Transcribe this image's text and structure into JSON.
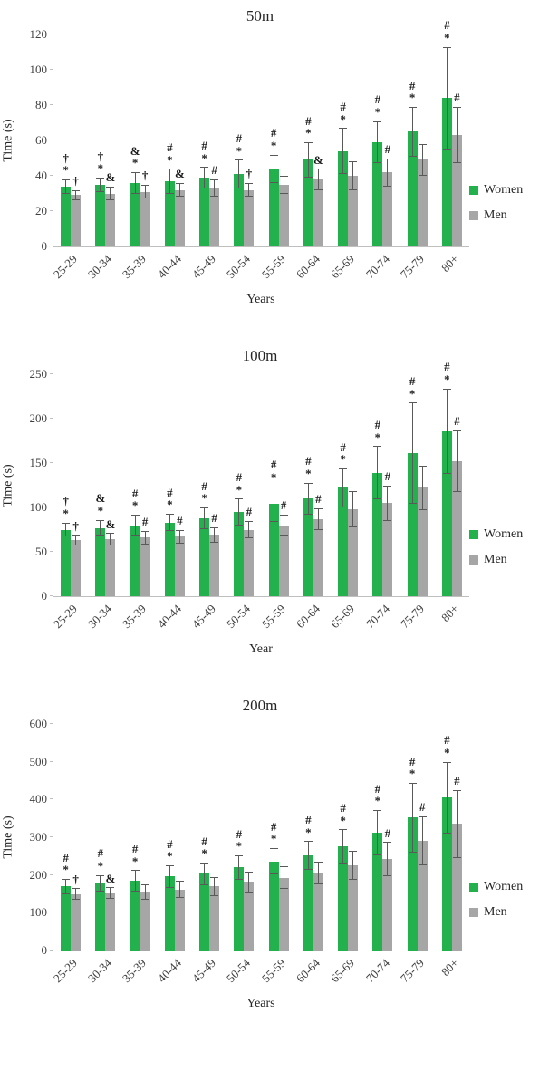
{
  "figure": {
    "background": "#ffffff"
  },
  "colors": {
    "women": "#22B14C",
    "men": "#A6A6A6",
    "error_bar": "#595959",
    "axis": "#BFBFBF",
    "annotation": "#1a1a1a",
    "tick_text": "#404040"
  },
  "legend": {
    "items": [
      "Women",
      "Men"
    ]
  },
  "chart_data": [
    {
      "type": "bar",
      "title": "50m",
      "xlabel": "Years",
      "ylabel": "Time (s)",
      "ylim": [
        0,
        120
      ],
      "yticks": [
        0,
        20,
        40,
        60,
        80,
        100,
        120
      ],
      "grid": false,
      "legend_position": "right",
      "categories": [
        "25-29",
        "30-34",
        "35-39",
        "40-44",
        "45-49",
        "50-54",
        "55-59",
        "60-64",
        "65-69",
        "70-74",
        "75-79",
        "80+"
      ],
      "series": [
        {
          "name": "Women",
          "color": "#22B14C",
          "values": [
            34,
            35,
            36,
            37,
            39,
            41,
            44,
            49,
            54,
            59,
            65,
            84
          ],
          "errors": [
            4,
            4,
            6,
            7,
            6,
            8,
            8,
            10,
            13,
            12,
            14,
            29
          ],
          "annotations": [
            [
              "†",
              "*"
            ],
            [
              "†",
              "*"
            ],
            [
              "&",
              "*"
            ],
            [
              "#",
              "*"
            ],
            [
              "#",
              "*"
            ],
            [
              "#",
              "*"
            ],
            [
              "#",
              "*"
            ],
            [
              "#",
              "*"
            ],
            [
              "#",
              "*"
            ],
            [
              "#",
              "*"
            ],
            [
              "#",
              "*"
            ],
            [
              "#",
              "*"
            ]
          ]
        },
        {
          "name": "Men",
          "color": "#A6A6A6",
          "values": [
            29,
            30,
            31,
            32,
            33,
            32,
            35,
            38,
            40,
            42,
            49,
            63
          ],
          "errors": [
            3,
            4,
            4,
            4,
            5,
            4,
            5,
            6,
            8,
            8,
            9,
            16
          ],
          "annotations": [
            [
              "†"
            ],
            [
              "&"
            ],
            [
              "†"
            ],
            [
              "&"
            ],
            [
              "#"
            ],
            [
              "†"
            ],
            [],
            [
              "&"
            ],
            [],
            [
              "#"
            ],
            [],
            [
              "#"
            ]
          ]
        }
      ]
    },
    {
      "type": "bar",
      "title": "100m",
      "xlabel": "Year",
      "ylabel": "Time (s)",
      "ylim": [
        0,
        250
      ],
      "yticks": [
        0,
        50,
        100,
        150,
        200,
        250
      ],
      "grid": false,
      "legend_position": "right",
      "categories": [
        "25-29",
        "30-34",
        "35-39",
        "40-44",
        "45-49",
        "50-54",
        "55-59",
        "60-64",
        "65-69",
        "70-74",
        "75-79",
        "80+"
      ],
      "series": [
        {
          "name": "Women",
          "color": "#22B14C",
          "values": [
            75,
            77,
            80,
            83,
            88,
            95,
            104,
            110,
            122,
            139,
            161,
            186
          ],
          "errors": [
            8,
            9,
            12,
            10,
            12,
            15,
            20,
            18,
            22,
            30,
            57,
            48
          ],
          "annotations": [
            [
              "†",
              "*"
            ],
            [
              "&",
              "*"
            ],
            [
              "#",
              "*"
            ],
            [
              "#",
              "*"
            ],
            [
              "#",
              "*"
            ],
            [
              "#",
              "*"
            ],
            [
              "#",
              "*"
            ],
            [
              "#",
              "*"
            ],
            [
              "#",
              "*"
            ],
            [
              "#",
              "*"
            ],
            [
              "#",
              "*"
            ],
            [
              "#",
              "*"
            ]
          ]
        },
        {
          "name": "Men",
          "color": "#A6A6A6",
          "values": [
            63,
            64,
            66,
            67,
            69,
            75,
            80,
            87,
            98,
            105,
            122,
            152
          ],
          "errors": [
            6,
            7,
            8,
            8,
            9,
            10,
            12,
            12,
            20,
            20,
            25,
            35
          ],
          "annotations": [
            [
              "†"
            ],
            [
              "&"
            ],
            [
              "#"
            ],
            [
              "#"
            ],
            [
              "#"
            ],
            [
              "#"
            ],
            [
              "#"
            ],
            [
              "#"
            ],
            [],
            [
              "#"
            ],
            [],
            [
              "#"
            ]
          ]
        }
      ]
    },
    {
      "type": "bar",
      "title": "200m",
      "xlabel": "Years",
      "ylabel": "Time (s)",
      "ylim": [
        0,
        600
      ],
      "yticks": [
        0,
        100,
        200,
        300,
        400,
        500,
        600
      ],
      "grid": false,
      "legend_position": "right",
      "categories": [
        "25-29",
        "30-34",
        "35-39",
        "40-44",
        "45-49",
        "50-54",
        "55-59",
        "60-64",
        "65-69",
        "70-74",
        "75-79",
        "80+"
      ],
      "series": [
        {
          "name": "Women",
          "color": "#22B14C",
          "values": [
            170,
            178,
            185,
            196,
            203,
            220,
            236,
            252,
            276,
            312,
            352,
            405
          ],
          "errors": [
            20,
            22,
            28,
            30,
            30,
            32,
            35,
            38,
            45,
            60,
            92,
            95
          ],
          "annotations": [
            [
              "#",
              "*"
            ],
            [
              "#",
              "*"
            ],
            [
              "#",
              "*"
            ],
            [
              "#",
              "*"
            ],
            [
              "#",
              "*"
            ],
            [
              "#",
              "*"
            ],
            [
              "#",
              "*"
            ],
            [
              "#",
              "*"
            ],
            [
              "#",
              "*"
            ],
            [
              "#",
              "*"
            ],
            [
              "#",
              "*"
            ],
            [
              "#",
              "*"
            ]
          ]
        },
        {
          "name": "Men",
          "color": "#A6A6A6",
          "values": [
            150,
            152,
            155,
            162,
            170,
            182,
            193,
            205,
            225,
            242,
            290,
            335
          ],
          "errors": [
            15,
            15,
            20,
            22,
            25,
            28,
            30,
            30,
            38,
            45,
            65,
            90
          ],
          "annotations": [
            [
              "†"
            ],
            [
              "&"
            ],
            [],
            [],
            [],
            [],
            [],
            [],
            [],
            [
              "#"
            ],
            [
              "#"
            ],
            [
              "#"
            ]
          ]
        }
      ]
    }
  ]
}
